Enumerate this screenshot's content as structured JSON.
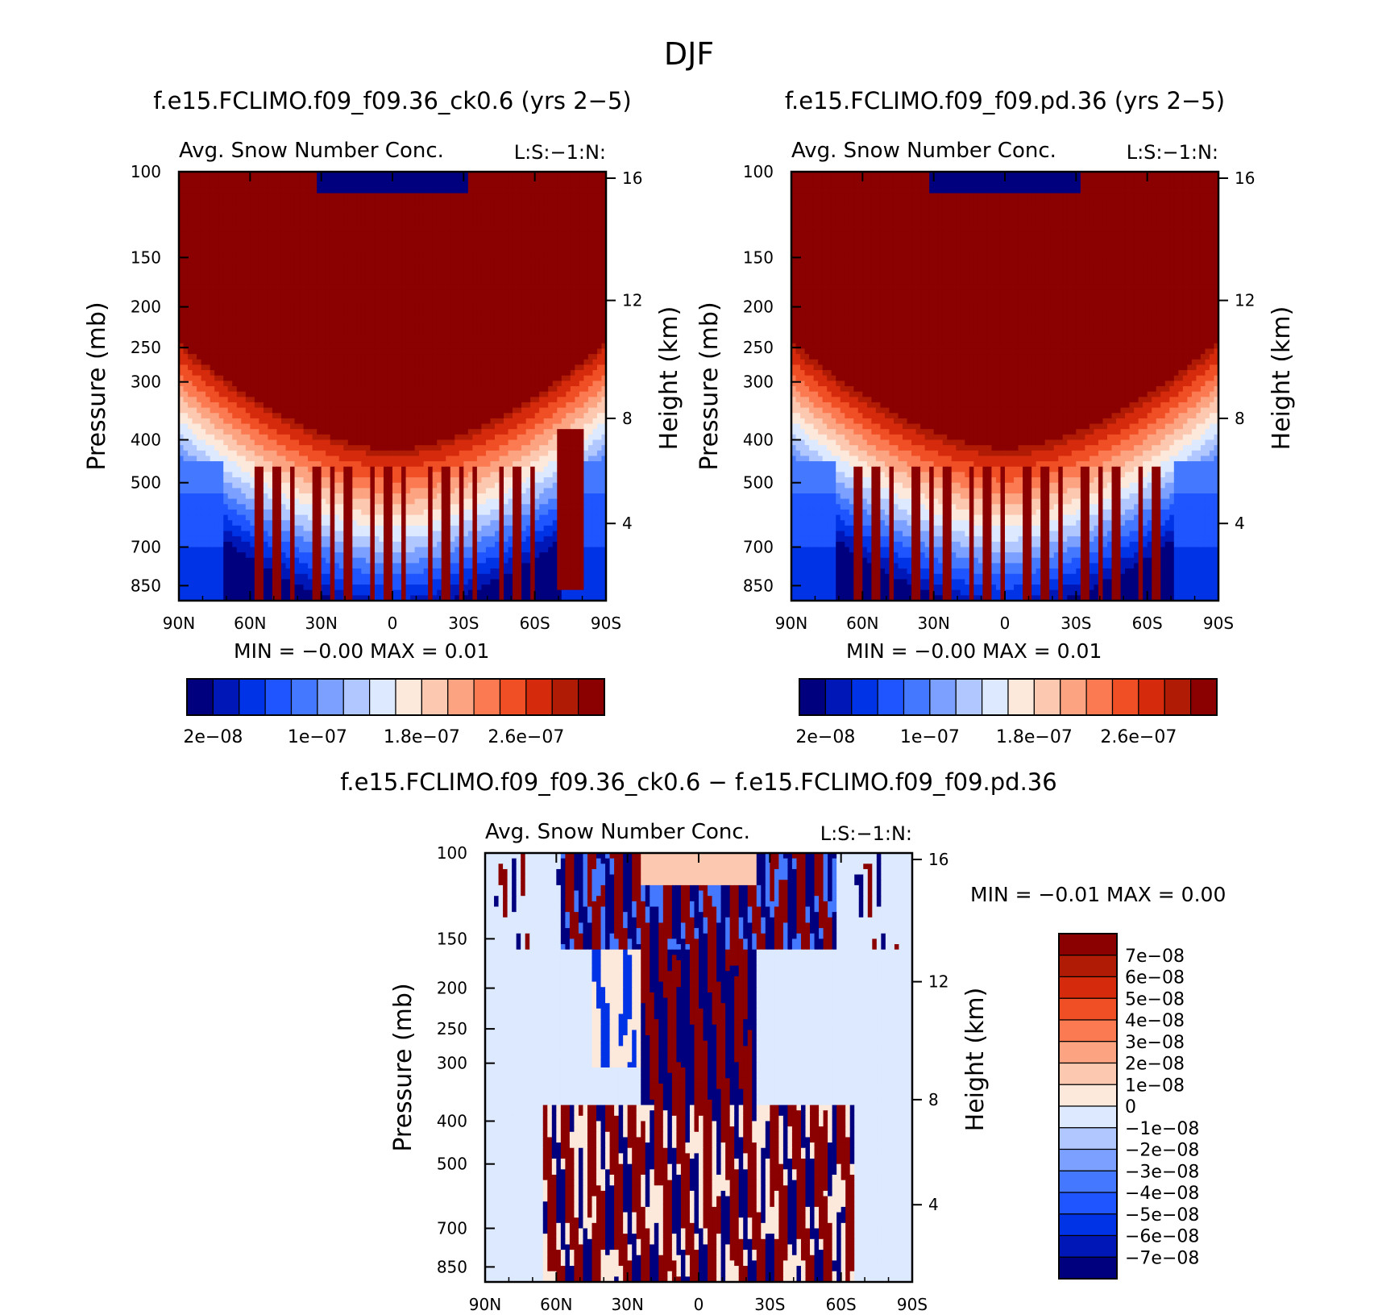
{
  "page": {
    "title": "DJF"
  },
  "colors": {
    "seq": [
      "#00007f",
      "#0017b8",
      "#0033e6",
      "#1f55ff",
      "#4479ff",
      "#7ba0ff",
      "#b0c7ff",
      "#dce9ff",
      "#fde9db",
      "#fdc8b0",
      "#fca381",
      "#fb7a51",
      "#f04e24",
      "#d62a0c",
      "#b01b05",
      "#8b0000"
    ],
    "div": [
      "#00007f",
      "#0017b8",
      "#0033e6",
      "#1f55ff",
      "#4479ff",
      "#7ba0ff",
      "#b0c7ff",
      "#dce9ff",
      "#fde9db",
      "#fdc8b0",
      "#fca381",
      "#fb7a51",
      "#f04e24",
      "#d62a0c",
      "#b01b05",
      "#8b0000"
    ]
  },
  "chart_data": [
    {
      "type": "heatmap",
      "title": "f.e15.FCLIMO.f09_f09.36_ck0.6 (yrs 2−5)",
      "subtitle": "Avg. Snow Number Conc.",
      "corner_label": "L:S:−1:N:",
      "ylabel": "Pressure (mb)",
      "ylabel_right": "Height (km)",
      "x_ticks": [
        "90N",
        "60N",
        "30N",
        "0",
        "30S",
        "60S",
        "90S"
      ],
      "y_ticks": [
        "100",
        "150",
        "200",
        "250",
        "300",
        "400",
        "500",
        "700",
        "850"
      ],
      "y_right_ticks": [
        "16",
        "12",
        "8",
        "4"
      ],
      "min_max": "MIN =   −0.00   MAX =    0.01",
      "colorbar_labels": [
        "2e−08",
        "1e−07",
        "1.8e−07",
        "2.6e−07"
      ],
      "colorbar_orientation": "horizontal"
    },
    {
      "type": "heatmap",
      "title": "f.e15.FCLIMO.f09_f09.pd.36 (yrs 2−5)",
      "subtitle": "Avg. Snow Number Conc.",
      "corner_label": "L:S:−1:N:",
      "ylabel": "Pressure (mb)",
      "ylabel_right": "Height (km)",
      "x_ticks": [
        "90N",
        "60N",
        "30N",
        "0",
        "30S",
        "60S",
        "90S"
      ],
      "y_ticks": [
        "100",
        "150",
        "200",
        "250",
        "300",
        "400",
        "500",
        "700",
        "850"
      ],
      "y_right_ticks": [
        "16",
        "12",
        "8",
        "4"
      ],
      "min_max": "MIN =   −0.00   MAX =    0.01",
      "colorbar_labels": [
        "2e−08",
        "1e−07",
        "1.8e−07",
        "2.6e−07"
      ],
      "colorbar_orientation": "horizontal"
    },
    {
      "type": "heatmap",
      "title": "f.e15.FCLIMO.f09_f09.36_ck0.6 − f.e15.FCLIMO.f09_f09.pd.36",
      "subtitle": "Avg. Snow Number Conc.",
      "corner_label": "L:S:−1:N:",
      "ylabel": "Pressure (mb)",
      "ylabel_right": "Height (km)",
      "x_ticks": [
        "90N",
        "60N",
        "30N",
        "0",
        "30S",
        "60S",
        "90S"
      ],
      "y_ticks": [
        "100",
        "150",
        "200",
        "250",
        "300",
        "400",
        "500",
        "700",
        "850"
      ],
      "y_right_ticks": [
        "16",
        "12",
        "8",
        "4"
      ],
      "min_max": "MIN =   −0.01   MAX =    0.00",
      "colorbar_labels": [
        "7e−08",
        "6e−08",
        "5e−08",
        "4e−08",
        "3e−08",
        "2e−08",
        "1e−08",
        "0",
        "−1e−08",
        "−2e−08",
        "−3e−08",
        "−4e−08",
        "−5e−08",
        "−6e−08",
        "−7e−08"
      ],
      "colorbar_orientation": "vertical"
    }
  ]
}
